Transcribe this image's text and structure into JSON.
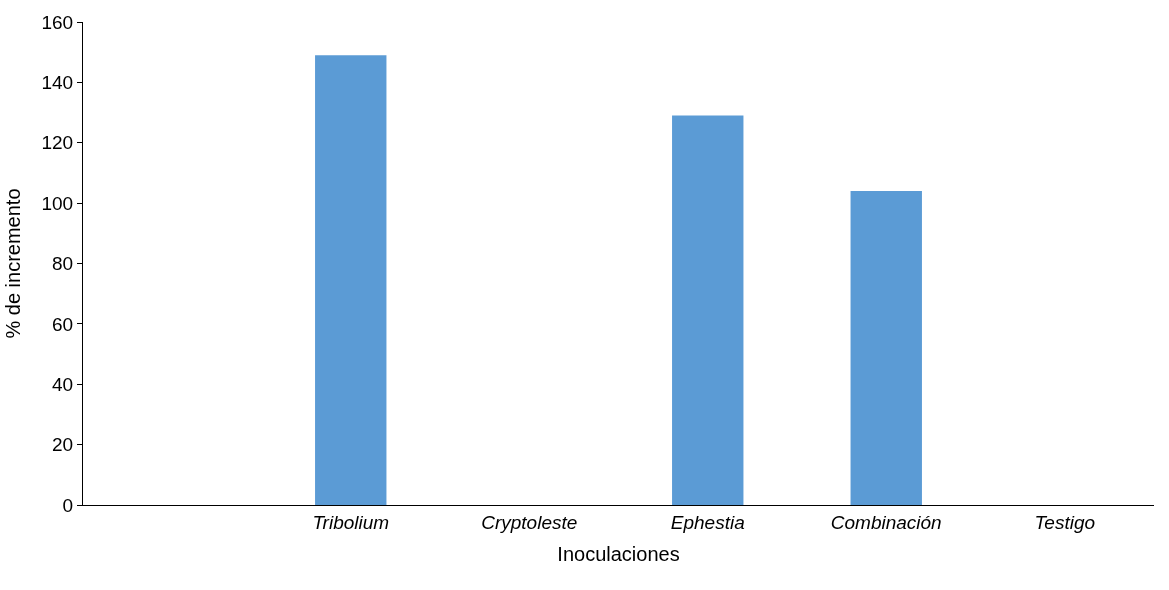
{
  "chart_data": {
    "type": "bar",
    "xlabel": "Inoculaciones",
    "ylabel": "% de incremento",
    "categories": [
      null,
      "Tribolium",
      "Cryptoleste",
      "Ephestia",
      "Combinación",
      "Testigo"
    ],
    "values": [
      null,
      149,
      0,
      129,
      104,
      0
    ],
    "color": "#5b9bd5",
    "ylim": [
      0,
      160
    ],
    "yticks": [
      0,
      20,
      40,
      60,
      80,
      100,
      120,
      140,
      160
    ]
  }
}
